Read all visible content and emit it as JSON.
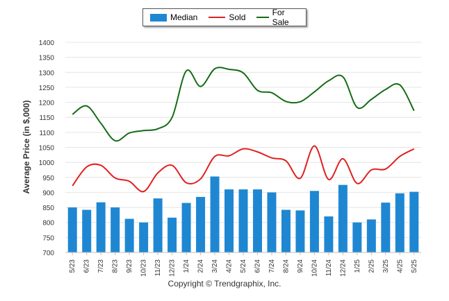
{
  "chart_data": {
    "type": "bar",
    "ylabel": "Average Price (in $,000)",
    "xlabel": "",
    "ylim": [
      700,
      1400
    ],
    "yticks": [
      700,
      750,
      800,
      850,
      900,
      950,
      1000,
      1050,
      1100,
      1150,
      1200,
      1250,
      1300,
      1350,
      1400
    ],
    "grid": true,
    "legend_position": "top-center",
    "categories": [
      "5/23",
      "6/23",
      "7/23",
      "8/23",
      "9/23",
      "10/23",
      "11/23",
      "12/23",
      "1/24",
      "2/24",
      "3/24",
      "4/24",
      "5/24",
      "6/24",
      "7/24",
      "8/24",
      "9/24",
      "10/24",
      "11/24",
      "12/24",
      "1/25",
      "2/25",
      "3/25",
      "4/25",
      "5/25"
    ],
    "series": [
      {
        "name": "Median",
        "kind": "bar",
        "color": "#1f87d2",
        "values": [
          850,
          842,
          867,
          850,
          812,
          800,
          880,
          816,
          865,
          885,
          953,
          910,
          910,
          910,
          900,
          842,
          840,
          905,
          820,
          925,
          800,
          810,
          866,
          897,
          902
        ]
      },
      {
        "name": "Sold",
        "kind": "line",
        "color": "#e02020",
        "values": [
          922,
          985,
          990,
          948,
          937,
          903,
          965,
          990,
          932,
          945,
          1020,
          1022,
          1045,
          1035,
          1015,
          1005,
          947,
          1055,
          943,
          1012,
          930,
          975,
          978,
          1020,
          1045
        ]
      },
      {
        "name": "For Sale",
        "kind": "line",
        "color": "#156b15",
        "values": [
          1160,
          1188,
          1130,
          1072,
          1098,
          1106,
          1112,
          1150,
          1305,
          1253,
          1312,
          1310,
          1298,
          1240,
          1232,
          1203,
          1202,
          1235,
          1272,
          1285,
          1183,
          1210,
          1243,
          1258,
          1172
        ]
      }
    ]
  },
  "legend": {
    "median": "Median",
    "sold": "Sold",
    "for_sale": "For Sale"
  },
  "footer": {
    "copyright": "Copyright © Trendgraphix, Inc."
  }
}
